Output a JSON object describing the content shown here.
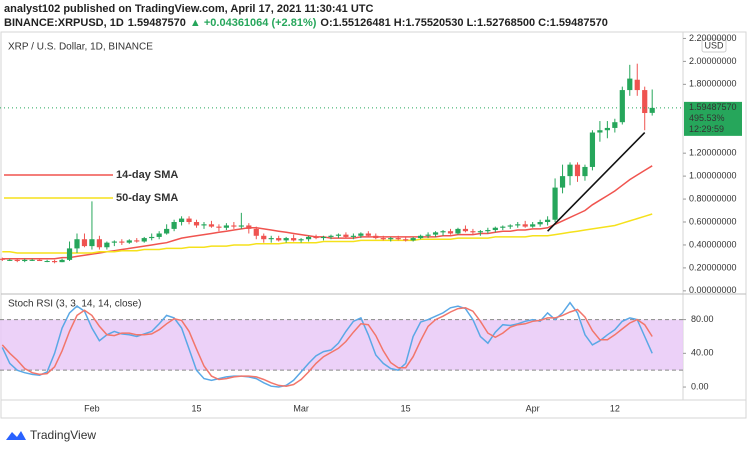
{
  "header": {
    "published": "analyst102 published on TradingView.com, April 17, 2021 11:30:41 UTC",
    "symbol": "BINANCE:XRPUSD, 1D",
    "last": "1.59487570",
    "change": "▲ +0.04361064 (+2.81%)",
    "ohlc": "O:1.55126481 H:1.75520530 L:1.52768500 C:1.59487570"
  },
  "chart_data": [
    {
      "type": "candlestick",
      "title": "XRP / U.S. Dollar, 1D, BINANCE",
      "currency": "USD",
      "categories": [
        null,
        null,
        null,
        null,
        null,
        null,
        null,
        null,
        null,
        null,
        null,
        null,
        "Feb",
        null,
        null,
        null,
        null,
        null,
        null,
        null,
        null,
        null,
        null,
        null,
        null,
        null,
        "15",
        null,
        null,
        null,
        null,
        null,
        null,
        null,
        null,
        null,
        null,
        null,
        null,
        null,
        "Mar",
        null,
        null,
        null,
        null,
        null,
        null,
        null,
        null,
        null,
        null,
        null,
        null,
        null,
        "15",
        null,
        null,
        null,
        null,
        null,
        null,
        null,
        null,
        null,
        null,
        null,
        null,
        null,
        null,
        null,
        null,
        "Apr",
        null,
        null,
        null,
        null,
        null,
        null,
        null,
        null,
        null,
        null,
        "12",
        null,
        null,
        null,
        null,
        null
      ],
      "ohlc": [
        [
          0.28,
          0.29,
          0.26,
          0.27
        ],
        [
          0.27,
          0.28,
          0.26,
          0.27
        ],
        [
          0.27,
          0.28,
          0.25,
          0.26
        ],
        [
          0.26,
          0.28,
          0.25,
          0.27
        ],
        [
          0.27,
          0.28,
          0.26,
          0.27
        ],
        [
          0.27,
          0.28,
          0.26,
          0.26
        ],
        [
          0.26,
          0.27,
          0.25,
          0.26
        ],
        [
          0.26,
          0.27,
          0.24,
          0.25
        ],
        [
          0.25,
          0.28,
          0.25,
          0.27
        ],
        [
          0.27,
          0.43,
          0.26,
          0.37
        ],
        [
          0.37,
          0.5,
          0.33,
          0.45
        ],
        [
          0.45,
          0.5,
          0.38,
          0.39
        ],
        [
          0.39,
          0.78,
          0.36,
          0.45
        ],
        [
          0.45,
          0.48,
          0.36,
          0.38
        ],
        [
          0.38,
          0.43,
          0.36,
          0.42
        ],
        [
          0.42,
          0.44,
          0.39,
          0.43
        ],
        [
          0.43,
          0.45,
          0.4,
          0.42
        ],
        [
          0.42,
          0.45,
          0.41,
          0.44
        ],
        [
          0.44,
          0.46,
          0.42,
          0.43
        ],
        [
          0.43,
          0.47,
          0.42,
          0.46
        ],
        [
          0.46,
          0.5,
          0.44,
          0.47
        ],
        [
          0.47,
          0.52,
          0.45,
          0.5
        ],
        [
          0.5,
          0.58,
          0.49,
          0.54
        ],
        [
          0.54,
          0.62,
          0.52,
          0.6
        ],
        [
          0.6,
          0.65,
          0.57,
          0.63
        ],
        [
          0.63,
          0.65,
          0.58,
          0.6
        ],
        [
          0.6,
          0.62,
          0.55,
          0.57
        ],
        [
          0.57,
          0.6,
          0.54,
          0.58
        ],
        [
          0.58,
          0.61,
          0.55,
          0.56
        ],
        [
          0.56,
          0.58,
          0.52,
          0.55
        ],
        [
          0.55,
          0.59,
          0.53,
          0.57
        ],
        [
          0.57,
          0.6,
          0.54,
          0.56
        ],
        [
          0.56,
          0.68,
          0.54,
          0.57
        ],
        [
          0.57,
          0.59,
          0.5,
          0.54
        ],
        [
          0.54,
          0.56,
          0.45,
          0.48
        ],
        [
          0.48,
          0.5,
          0.42,
          0.45
        ],
        [
          0.45,
          0.48,
          0.42,
          0.46
        ],
        [
          0.46,
          0.48,
          0.43,
          0.44
        ],
        [
          0.44,
          0.47,
          0.42,
          0.46
        ],
        [
          0.46,
          0.49,
          0.43,
          0.44
        ],
        [
          0.44,
          0.46,
          0.42,
          0.45
        ],
        [
          0.45,
          0.48,
          0.43,
          0.47
        ],
        [
          0.47,
          0.49,
          0.45,
          0.46
        ],
        [
          0.46,
          0.48,
          0.44,
          0.47
        ],
        [
          0.47,
          0.49,
          0.45,
          0.48
        ],
        [
          0.48,
          0.5,
          0.46,
          0.49
        ],
        [
          0.49,
          0.51,
          0.46,
          0.47
        ],
        [
          0.47,
          0.5,
          0.45,
          0.48
        ],
        [
          0.48,
          0.51,
          0.46,
          0.5
        ],
        [
          0.5,
          0.52,
          0.47,
          0.48
        ],
        [
          0.48,
          0.5,
          0.45,
          0.46
        ],
        [
          0.46,
          0.48,
          0.44,
          0.45
        ],
        [
          0.45,
          0.47,
          0.43,
          0.46
        ],
        [
          0.46,
          0.48,
          0.44,
          0.45
        ],
        [
          0.45,
          0.47,
          0.43,
          0.44
        ],
        [
          0.44,
          0.47,
          0.43,
          0.46
        ],
        [
          0.46,
          0.49,
          0.45,
          0.48
        ],
        [
          0.48,
          0.51,
          0.46,
          0.49
        ],
        [
          0.49,
          0.52,
          0.47,
          0.51
        ],
        [
          0.51,
          0.53,
          0.48,
          0.52
        ],
        [
          0.52,
          0.54,
          0.49,
          0.5
        ],
        [
          0.5,
          0.55,
          0.49,
          0.54
        ],
        [
          0.54,
          0.57,
          0.51,
          0.52
        ],
        [
          0.52,
          0.54,
          0.49,
          0.51
        ],
        [
          0.51,
          0.53,
          0.48,
          0.52
        ],
        [
          0.52,
          0.55,
          0.5,
          0.53
        ],
        [
          0.53,
          0.56,
          0.51,
          0.55
        ],
        [
          0.55,
          0.57,
          0.53,
          0.56
        ],
        [
          0.56,
          0.58,
          0.54,
          0.57
        ],
        [
          0.57,
          0.6,
          0.55,
          0.58
        ],
        [
          0.58,
          0.61,
          0.55,
          0.56
        ],
        [
          0.56,
          0.6,
          0.55,
          0.58
        ],
        [
          0.58,
          0.62,
          0.56,
          0.6
        ],
        [
          0.6,
          0.65,
          0.57,
          0.62
        ],
        [
          0.62,
          0.98,
          0.6,
          0.9
        ],
        [
          0.9,
          1.1,
          0.85,
          1.0
        ],
        [
          1.0,
          1.12,
          0.92,
          1.1
        ],
        [
          1.1,
          1.12,
          0.95,
          1.0
        ],
        [
          1.0,
          1.1,
          0.96,
          1.08
        ],
        [
          1.08,
          1.4,
          1.05,
          1.38
        ],
        [
          1.38,
          1.48,
          1.3,
          1.4
        ],
        [
          1.4,
          1.48,
          1.33,
          1.42
        ],
        [
          1.42,
          1.5,
          1.38,
          1.47
        ],
        [
          1.47,
          1.78,
          1.45,
          1.75
        ],
        [
          1.75,
          1.97,
          1.7,
          1.85
        ],
        [
          1.84,
          1.98,
          1.7,
          1.75
        ],
        [
          1.75,
          1.78,
          1.4,
          1.55
        ],
        [
          1.55126481,
          1.7552053,
          1.527685,
          1.5948757
        ]
      ],
      "up_color": "#26a65b",
      "down_color": "#ef5350",
      "series": [
        {
          "name": "14-day SMA",
          "color": "#f0544f",
          "values": [
            0.28,
            0.28,
            0.28,
            0.28,
            0.28,
            0.28,
            0.28,
            0.28,
            0.29,
            0.29,
            0.3,
            0.31,
            0.32,
            0.33,
            0.34,
            0.35,
            0.36,
            0.37,
            0.38,
            0.39,
            0.4,
            0.41,
            0.42,
            0.44,
            0.46,
            0.47,
            0.48,
            0.49,
            0.5,
            0.51,
            0.52,
            0.53,
            0.54,
            0.55,
            0.55,
            0.54,
            0.53,
            0.52,
            0.51,
            0.5,
            0.49,
            0.48,
            0.47,
            0.47,
            0.46,
            0.46,
            0.46,
            0.46,
            0.47,
            0.47,
            0.47,
            0.47,
            0.47,
            0.47,
            0.47,
            0.47,
            0.47,
            0.47,
            0.47,
            0.48,
            0.48,
            0.49,
            0.49,
            0.49,
            0.5,
            0.5,
            0.51,
            0.52,
            0.52,
            0.53,
            0.53,
            0.54,
            0.54,
            0.55,
            0.58,
            0.61,
            0.64,
            0.67,
            0.7,
            0.75,
            0.79,
            0.83,
            0.87,
            0.92,
            0.97,
            1.01,
            1.05,
            1.09
          ]
        },
        {
          "name": "50-day SMA",
          "color": "#f5e11b",
          "values": [
            0.34,
            0.34,
            0.33,
            0.33,
            0.33,
            0.33,
            0.33,
            0.33,
            0.33,
            0.33,
            0.33,
            0.33,
            0.33,
            0.34,
            0.34,
            0.34,
            0.35,
            0.35,
            0.35,
            0.36,
            0.36,
            0.36,
            0.37,
            0.37,
            0.37,
            0.38,
            0.38,
            0.38,
            0.39,
            0.39,
            0.39,
            0.4,
            0.4,
            0.4,
            0.41,
            0.41,
            0.41,
            0.41,
            0.42,
            0.42,
            0.42,
            0.42,
            0.42,
            0.43,
            0.43,
            0.43,
            0.43,
            0.43,
            0.44,
            0.44,
            0.44,
            0.44,
            0.44,
            0.44,
            0.44,
            0.44,
            0.45,
            0.45,
            0.45,
            0.45,
            0.45,
            0.46,
            0.46,
            0.46,
            0.46,
            0.46,
            0.47,
            0.47,
            0.47,
            0.47,
            0.47,
            0.48,
            0.48,
            0.48,
            0.49,
            0.5,
            0.51,
            0.52,
            0.53,
            0.54,
            0.55,
            0.56,
            0.57,
            0.59,
            0.61,
            0.63,
            0.65,
            0.67
          ]
        }
      ],
      "trendline": [
        0.52,
        1.38
      ],
      "trendline_color": "#111111",
      "last_price_label": "1.59487570",
      "change_label": "495.53%",
      "countdown_label": "12:29:59",
      "ylim": [
        -0.01,
        2.23
      ],
      "yticks": [
        {
          "value": 0,
          "label": "0.00000000"
        },
        {
          "value": 0.2,
          "label": "0.20000000"
        },
        {
          "value": 0.4,
          "label": "0.40000000"
        },
        {
          "value": 0.6,
          "label": "0.60000000"
        },
        {
          "value": 0.8,
          "label": "0.80000000"
        },
        {
          "value": 1.0,
          "label": "1.00000000"
        },
        {
          "value": 1.2,
          "label": "1.20000000"
        },
        {
          "value": 1.8,
          "label": "1.80000000"
        },
        {
          "value": 2.0,
          "label": "2.00000000"
        },
        {
          "value": 2.2,
          "label": "2.20000000"
        }
      ]
    },
    {
      "type": "line",
      "title": "Stoch RSI (3, 3, 14, 14, close)",
      "series": [
        {
          "color": "#5aa8e6",
          "values": [
            47,
            28,
            20,
            17,
            15,
            14,
            18,
            40,
            70,
            88,
            96,
            90,
            70,
            55,
            62,
            66,
            63,
            62,
            60,
            63,
            66,
            75,
            85,
            82,
            70,
            45,
            20,
            10,
            8,
            10,
            12,
            13,
            13,
            12,
            10,
            5,
            1,
            0,
            2,
            8,
            18,
            28,
            37,
            42,
            44,
            52,
            66,
            78,
            82,
            62,
            38,
            28,
            22,
            20,
            28,
            60,
            77,
            80,
            84,
            88,
            94,
            96,
            93,
            80,
            60,
            52,
            65,
            74,
            73,
            75,
            78,
            80,
            78,
            88,
            80,
            88,
            100,
            88,
            62,
            50,
            55,
            62,
            68,
            78,
            82,
            80,
            60,
            40
          ]
        },
        {
          "color": "#f2766b",
          "values": [
            50,
            40,
            32,
            22,
            17,
            15,
            16,
            24,
            43,
            66,
            85,
            91,
            85,
            72,
            62,
            61,
            64,
            64,
            62,
            62,
            63,
            68,
            75,
            81,
            79,
            66,
            45,
            25,
            13,
            9,
            10,
            12,
            13,
            13,
            12,
            9,
            5,
            2,
            1,
            3,
            9,
            18,
            28,
            36,
            41,
            46,
            54,
            65,
            75,
            74,
            61,
            43,
            29,
            23,
            23,
            36,
            55,
            72,
            80,
            84,
            89,
            93,
            94,
            90,
            78,
            64,
            59,
            64,
            71,
            74,
            75,
            78,
            79,
            82,
            82,
            85,
            89,
            92,
            83,
            67,
            56,
            56,
            62,
            69,
            76,
            80,
            74,
            60
          ]
        }
      ],
      "band": [
        20,
        80
      ],
      "band_color": "#e9c9f7",
      "ylim": [
        -13,
        108
      ],
      "yticks": [
        {
          "value": 0,
          "label": "0.00"
        },
        {
          "value": 40,
          "label": "40.00"
        },
        {
          "value": 80,
          "label": "80.00"
        }
      ]
    }
  ],
  "footer": {
    "brand": "TradingView"
  }
}
